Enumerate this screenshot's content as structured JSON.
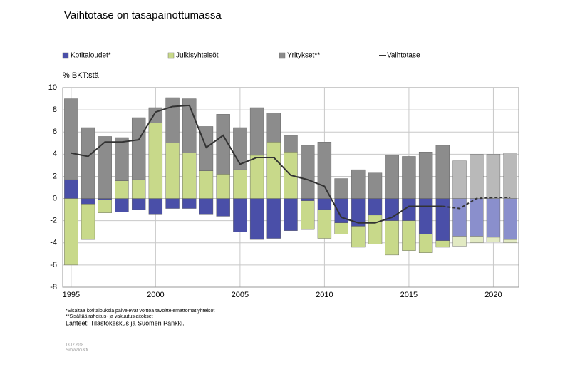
{
  "chart_data": {
    "type": "bar",
    "title": "Vaihtotase on tasapainottumassa",
    "y_label": "% BKT:stä",
    "x": [
      1995,
      1996,
      1997,
      1998,
      1999,
      2000,
      2001,
      2002,
      2003,
      2004,
      2005,
      2006,
      2007,
      2008,
      2009,
      2010,
      2011,
      2012,
      2013,
      2014,
      2015,
      2016,
      2017,
      2018,
      2019,
      2020,
      2021
    ],
    "xlim": [
      1994.5,
      2021.5
    ],
    "xticks": [
      1995,
      2000,
      2005,
      2010,
      2015,
      2020
    ],
    "ylim": [
      -8,
      10
    ],
    "yticks": [
      -8,
      -6,
      -4,
      -2,
      0,
      2,
      4,
      6,
      8,
      10
    ],
    "grid": true,
    "forecast_from": 2018,
    "series": [
      {
        "name": "Kotitaloudet*",
        "color": "#4a4fa8",
        "forecast_color": "#8a8fcc",
        "values": [
          1.7,
          -0.5,
          -0.1,
          -1.2,
          -1.0,
          -1.4,
          -0.9,
          -0.9,
          -1.4,
          -1.6,
          -3.0,
          -3.7,
          -3.6,
          -2.9,
          -0.2,
          -1.0,
          -2.2,
          -2.5,
          -1.5,
          -2.0,
          -2.0,
          -3.2,
          -3.8,
          -3.4,
          -3.4,
          -3.5,
          -3.7
        ]
      },
      {
        "name": "Julkisyhteisöt",
        "color": "#c8d98a",
        "forecast_color": "#e2eac3",
        "values": [
          -6.0,
          -3.2,
          -1.2,
          1.6,
          1.7,
          6.8,
          5.0,
          4.1,
          2.5,
          2.2,
          2.6,
          3.9,
          5.1,
          4.2,
          -2.6,
          -2.6,
          -1.0,
          -1.9,
          -2.6,
          -3.1,
          -2.7,
          -1.7,
          -0.6,
          -0.9,
          -0.6,
          -0.4,
          -0.3
        ]
      },
      {
        "name": "Yritykset**",
        "color": "#8c8c8c",
        "forecast_color": "#b9b9b9",
        "values": [
          7.3,
          6.4,
          5.6,
          3.9,
          5.6,
          1.4,
          4.1,
          4.9,
          4.0,
          5.4,
          3.8,
          4.3,
          2.6,
          1.5,
          4.8,
          5.1,
          1.8,
          2.6,
          2.3,
          3.9,
          3.8,
          4.2,
          4.8,
          3.4,
          4.0,
          4.0,
          4.1
        ]
      },
      {
        "name": "Vaihtotase",
        "type": "line",
        "color": "#333333",
        "values": [
          4.1,
          3.8,
          5.1,
          5.1,
          5.3,
          7.8,
          8.3,
          8.4,
          4.6,
          5.7,
          3.1,
          3.7,
          3.7,
          2.1,
          1.7,
          1.1,
          -1.7,
          -2.2,
          -2.2,
          -1.7,
          -0.7,
          -0.7,
          -0.7,
          -0.9,
          0.0,
          0.1,
          0.1
        ]
      }
    ],
    "notes": [
      "*Sisältää kotitalouksia palvelevat voittoa tavoittelemattomat yhteisöt",
      "**Sisältää rahoitus- ja vakuutuslaitokset"
    ],
    "source": "Lähteet: Tilastokeskus ja Suomen Pankki.",
    "date": "18.12.2018",
    "site": "eurojatalous.fi"
  }
}
